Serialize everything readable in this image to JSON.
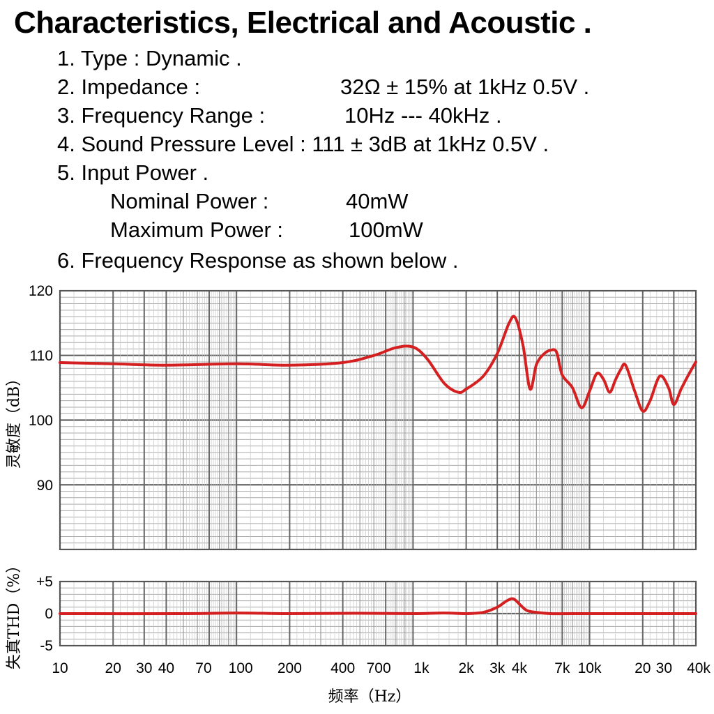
{
  "title": "Characteristics, Electrical and Acoustic .",
  "specs": {
    "item1": "1. Type : Dynamic .",
    "item2_label": "2. Impedance :",
    "item2_value": "32Ω ± 15% at 1kHz 0.5V .",
    "item3_label": "3. Frequency Range :",
    "item3_value": "10Hz --- 40kHz .",
    "item4": "4. Sound Pressure Level : 111 ± 3dB at 1kHz 0.5V .",
    "item5": "5. Input Power .",
    "nominal_label": "Nominal Power :",
    "nominal_value": "40mW",
    "maximum_label": "Maximum Power :",
    "maximum_value": "100mW",
    "item6": "6. Frequency Response as shown below ."
  },
  "chart_data": [
    {
      "type": "line",
      "x_scale": "log",
      "xlim": [
        10,
        40000
      ],
      "ylim": [
        80,
        120
      ],
      "ylabel": "灵敏度（dB）",
      "xlabel": "频率（Hz）",
      "grid": true,
      "y_ticks": [
        "120",
        "110",
        "100",
        "90"
      ],
      "x_tick_labels": [
        "10",
        "20",
        "30",
        "40",
        "70",
        "100",
        "200",
        "400",
        "700",
        "1k",
        "2k",
        "3k",
        "4k",
        "7k",
        "10k",
        "20",
        "30",
        "40k"
      ],
      "line_color": "#d42020",
      "series": [
        {
          "x": [
            10,
            20,
            40,
            100,
            200,
            400,
            600,
            800,
            1000,
            1200,
            1500,
            1800,
            2000,
            2500,
            3000,
            3500,
            3800,
            4200,
            4600,
            5000,
            5500,
            6000,
            6500,
            7000,
            8000,
            9000,
            10000,
            11000,
            12000,
            13000,
            14000,
            15000,
            16000,
            18000,
            20000,
            22000,
            25000,
            28000,
            30000,
            33000,
            36000,
            40000
          ],
          "y": [
            108.9,
            108.7,
            108.5,
            108.7,
            108.5,
            108.9,
            110.0,
            111.2,
            111.3,
            109.5,
            105.7,
            104.3,
            104.8,
            106.8,
            110.3,
            115.0,
            115.8,
            111.5,
            104.8,
            108.6,
            110.2,
            110.8,
            110.5,
            107.0,
            105.0,
            101.9,
            104.5,
            107.2,
            106.3,
            104.3,
            106.2,
            107.8,
            108.5,
            104.5,
            101.4,
            103.0,
            106.8,
            105.0,
            102.4,
            104.8,
            106.8,
            109.0
          ]
        }
      ]
    },
    {
      "type": "line",
      "x_scale": "log",
      "xlim": [
        10,
        40000
      ],
      "ylim": [
        -5,
        5
      ],
      "ylabel": "失真THD（%）",
      "grid": true,
      "y_ticks": [
        "+5",
        "0",
        "-5"
      ],
      "line_color": "#d42020",
      "series": [
        {
          "x": [
            10,
            50,
            100,
            200,
            500,
            1000,
            1500,
            2000,
            2500,
            3000,
            3400,
            3700,
            4000,
            4400,
            5000,
            6000,
            8000,
            15000,
            40000
          ],
          "y": [
            0,
            0,
            0.1,
            0,
            0.05,
            0,
            0.1,
            0,
            0.2,
            1.0,
            2.0,
            2.3,
            1.5,
            0.5,
            0.2,
            0,
            0,
            0,
            0
          ]
        }
      ]
    }
  ]
}
